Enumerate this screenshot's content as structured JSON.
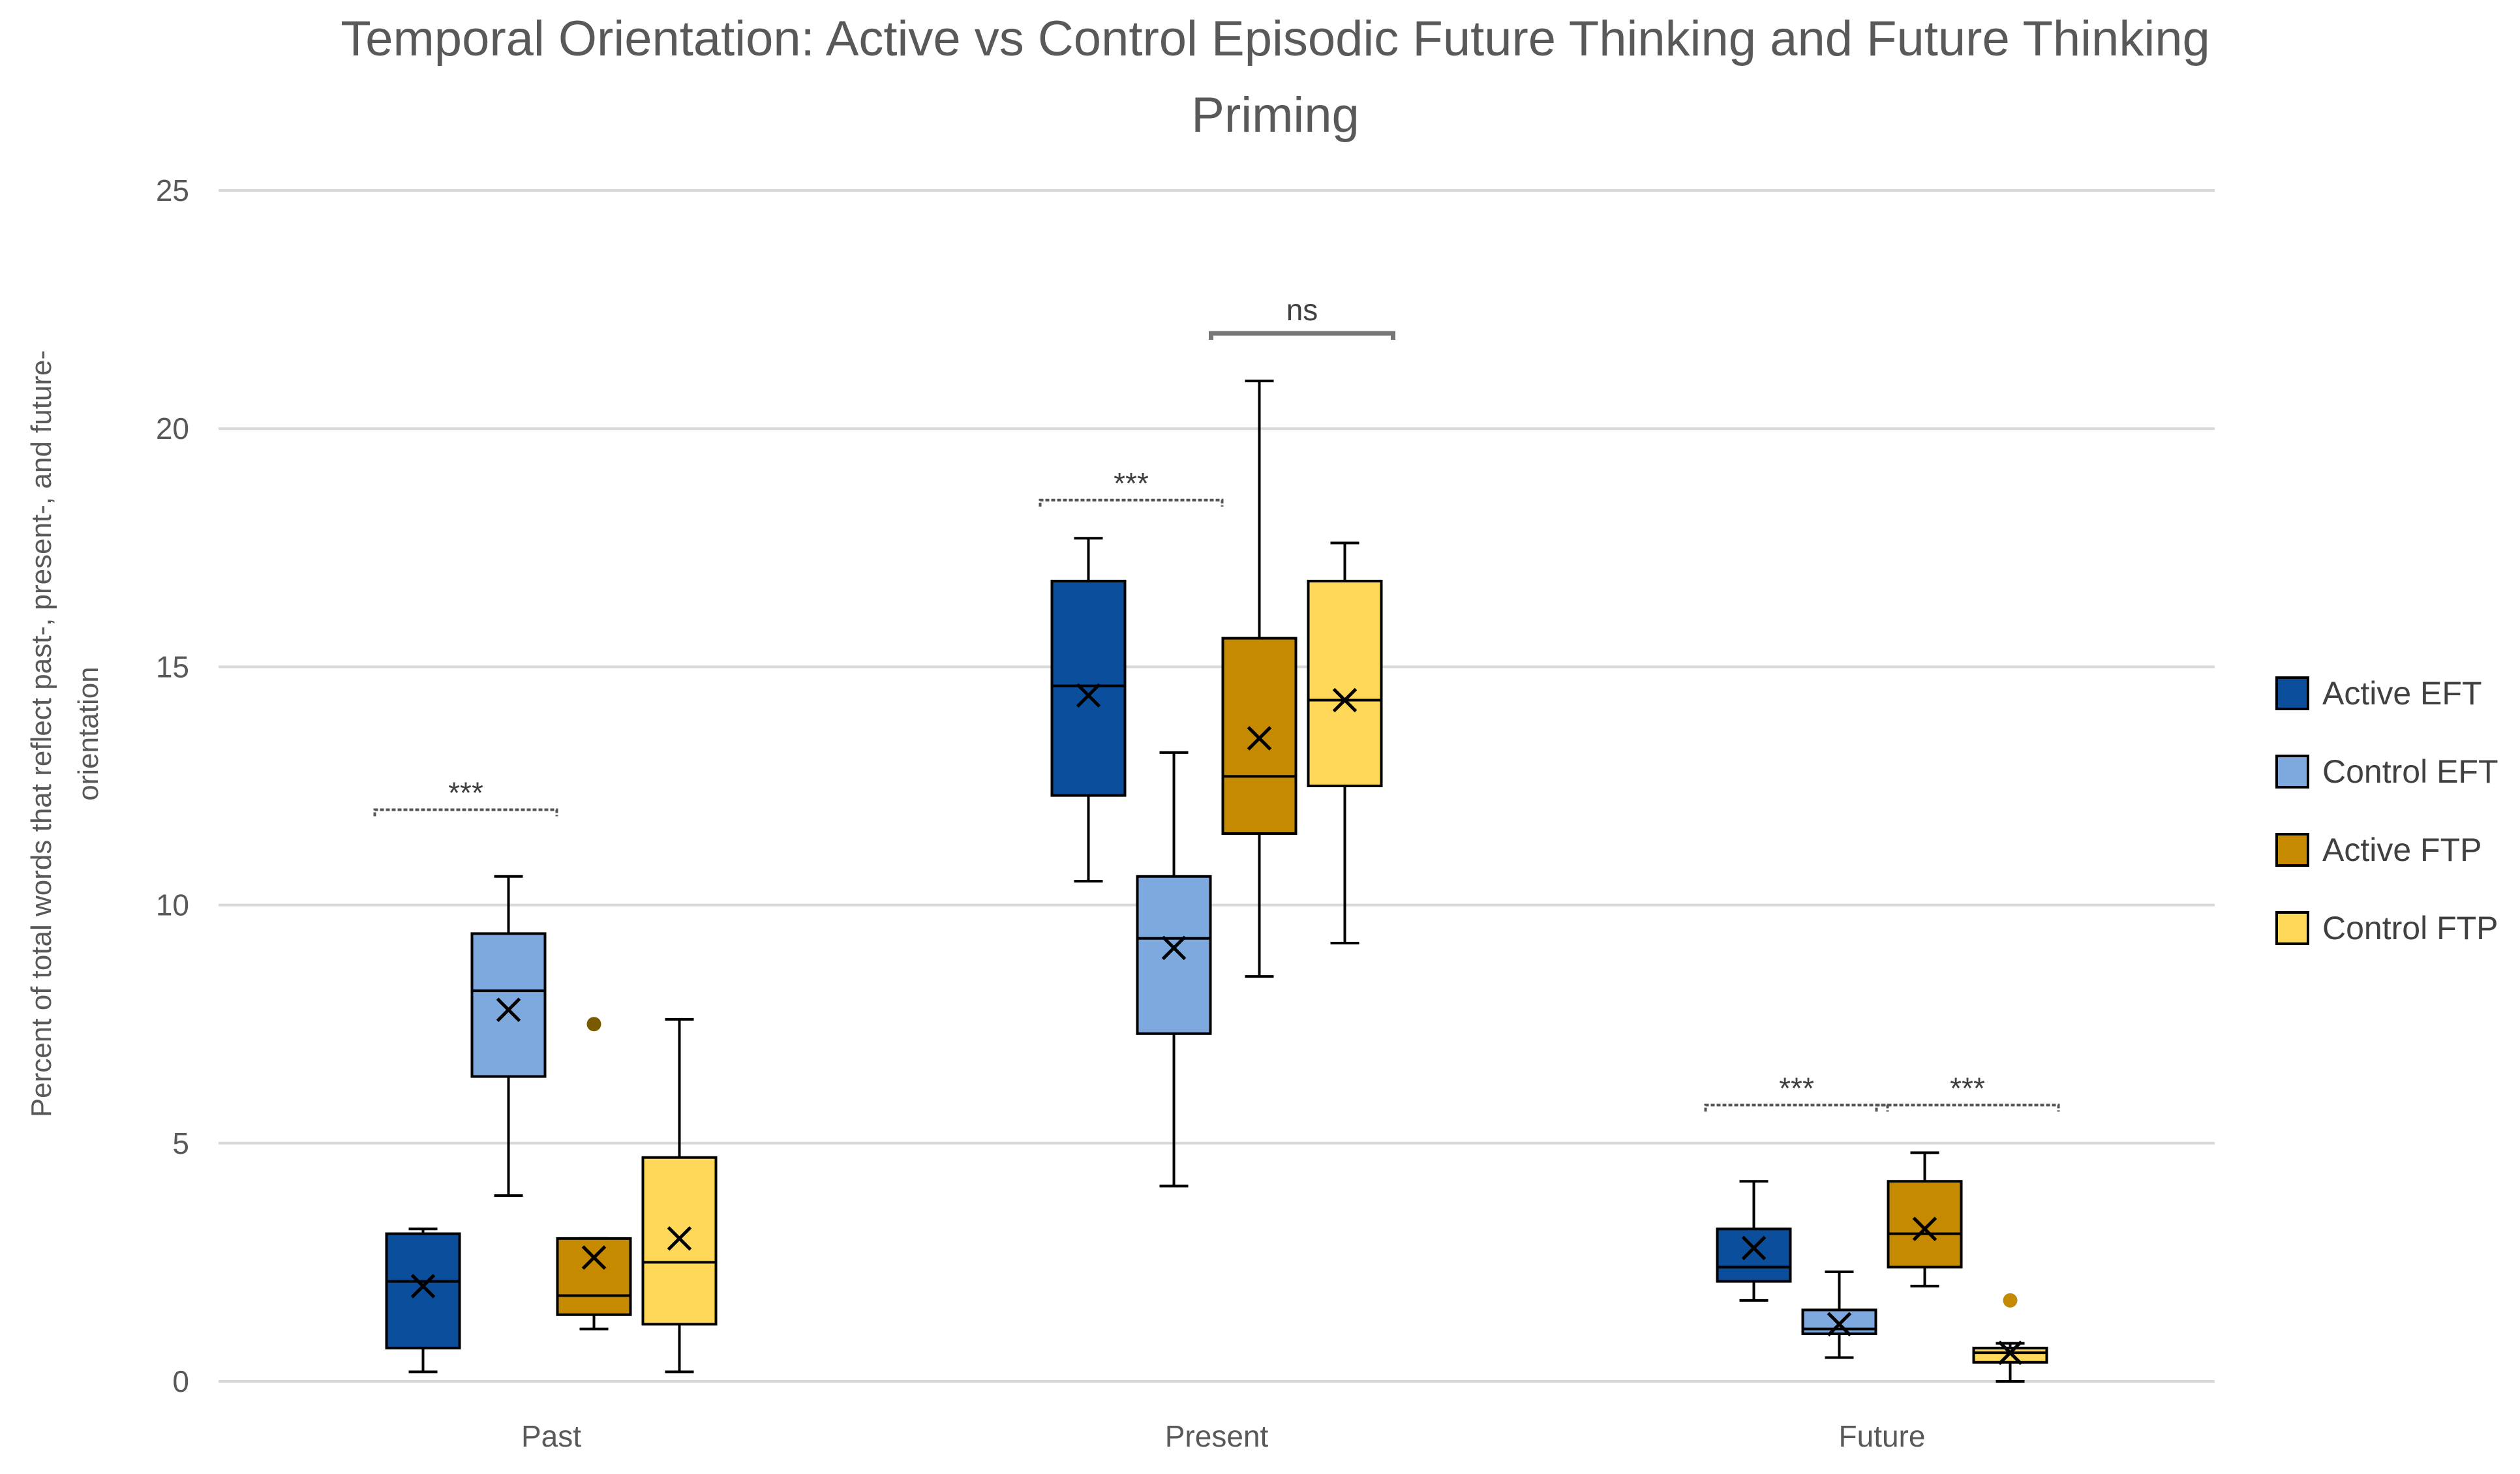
{
  "chart_data": {
    "type": "boxplot",
    "title": "Temporal Orientation: Active vs Control Episodic Future Thinking and Future Thinking Priming",
    "title_lines": [
      "Temporal Orientation: Active vs Control Episodic Future Thinking and Future Thinking",
      "Priming"
    ],
    "ylabel": "Percent of total words that reflect past-, present-, and future-orientation",
    "ylabel_lines": [
      "Percent of total words that reflect past-, present-, and future-",
      "orientation"
    ],
    "xlabel": "",
    "ylim": [
      0,
      25
    ],
    "yticks": [
      0,
      5,
      10,
      15,
      20,
      25
    ],
    "grid": true,
    "legend_position": "right",
    "categories": [
      "Past",
      "Present",
      "Future"
    ],
    "series": [
      {
        "name": "Active EFT",
        "color": "#0B4F9C",
        "boxes": [
          {
            "min": 0.2,
            "q1": 0.7,
            "median": 2.1,
            "q3": 3.1,
            "max": 3.2,
            "mean": 2.0,
            "outliers": []
          },
          {
            "min": 10.5,
            "q1": 12.3,
            "median": 14.6,
            "q3": 16.8,
            "max": 17.7,
            "mean": 14.4,
            "outliers": []
          },
          {
            "min": 1.7,
            "q1": 2.1,
            "median": 2.4,
            "q3": 3.2,
            "max": 4.2,
            "mean": 2.8,
            "outliers": []
          }
        ]
      },
      {
        "name": "Control EFT",
        "color": "#7EA9DE",
        "boxes": [
          {
            "min": 3.9,
            "q1": 6.4,
            "median": 8.2,
            "q3": 9.4,
            "max": 10.6,
            "mean": 7.8,
            "outliers": []
          },
          {
            "min": 4.1,
            "q1": 7.3,
            "median": 9.3,
            "q3": 10.6,
            "max": 13.2,
            "mean": 9.1,
            "outliers": []
          },
          {
            "min": 0.5,
            "q1": 1.0,
            "median": 1.1,
            "q3": 1.5,
            "max": 2.3,
            "mean": 1.2,
            "outliers": []
          }
        ]
      },
      {
        "name": "Active FTP",
        "color": "#C58A00",
        "boxes": [
          {
            "min": 1.1,
            "q1": 1.4,
            "median": 1.8,
            "q3": 3.0,
            "max": 3.0,
            "mean": 2.6,
            "outliers": [
              7.5
            ]
          },
          {
            "min": 8.5,
            "q1": 11.5,
            "median": 12.7,
            "q3": 15.6,
            "max": 21.0,
            "mean": 13.5,
            "outliers": []
          },
          {
            "min": 2.0,
            "q1": 2.4,
            "median": 3.1,
            "q3": 4.2,
            "max": 4.8,
            "mean": 3.2,
            "outliers": []
          }
        ]
      },
      {
        "name": "Control FTP",
        "color": "#FFD85A",
        "boxes": [
          {
            "min": 0.2,
            "q1": 1.2,
            "median": 2.5,
            "q3": 4.7,
            "max": 7.6,
            "mean": 3.0,
            "outliers": []
          },
          {
            "min": 9.2,
            "q1": 12.5,
            "median": 14.3,
            "q3": 16.8,
            "max": 17.6,
            "mean": 14.3,
            "outliers": []
          },
          {
            "min": 0.0,
            "q1": 0.4,
            "median": 0.6,
            "q3": 0.7,
            "max": 0.8,
            "mean": 0.6,
            "outliers": [
              1.7
            ]
          }
        ]
      }
    ],
    "annotations": [
      {
        "text": "***",
        "category": 0,
        "from_series": 0,
        "to_series": 1,
        "y": 12.0
      },
      {
        "text": "***",
        "category": 1,
        "from_series": 0,
        "to_series": 1,
        "y": 18.5
      },
      {
        "text": "ns",
        "category": 1,
        "from_series": 2,
        "to_series": 3,
        "y": 22.0
      },
      {
        "text": "***",
        "category": 2,
        "from_series": 0,
        "to_series": 1,
        "y": 5.8
      },
      {
        "text": "***",
        "category": 2,
        "from_series": 2,
        "to_series": 3,
        "y": 5.8
      }
    ]
  }
}
